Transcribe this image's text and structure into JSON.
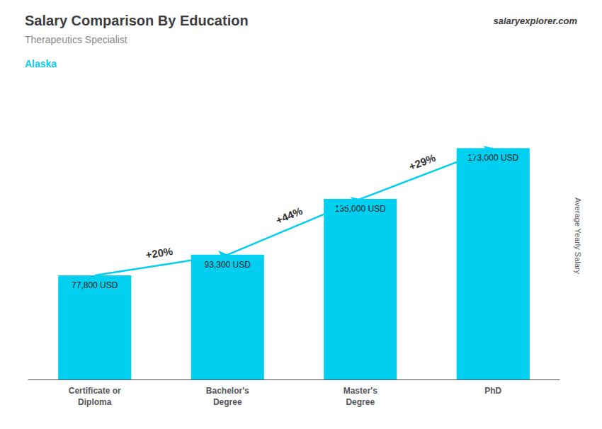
{
  "chart_data": {
    "type": "bar",
    "title": "Salary Comparison By Education",
    "subtitle": "Therapeutics Specialist",
    "location": "Alaska",
    "brand": "salaryexplorer.com",
    "ylabel": "Average Yearly Salary",
    "categories": [
      "Certificate or\nDiploma",
      "Bachelor's\nDegree",
      "Master's\nDegree",
      "PhD"
    ],
    "values": [
      77800,
      93300,
      135000,
      173000
    ],
    "value_labels": [
      "77,800 USD",
      "93,300 USD",
      "135,000 USD",
      "173,000 USD"
    ],
    "annotations": [
      "+20%",
      "+44%",
      "+29%"
    ],
    "color": "#00CFEF",
    "ylim": [
      0,
      215000
    ],
    "data_labels": true,
    "tick_labels": "x",
    "grid": false
  }
}
